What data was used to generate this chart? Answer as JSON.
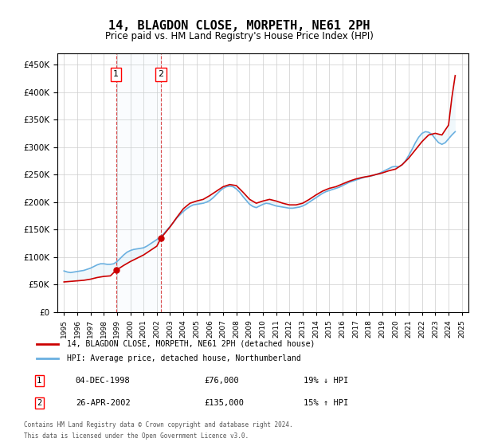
{
  "title": "14, BLAGDON CLOSE, MORPETH, NE61 2PH",
  "subtitle": "Price paid vs. HM Land Registry's House Price Index (HPI)",
  "legend_line1": "14, BLAGDON CLOSE, MORPETH, NE61 2PH (detached house)",
  "legend_line2": "HPI: Average price, detached house, Northumberland",
  "footer1": "Contains HM Land Registry data © Crown copyright and database right 2024.",
  "footer2": "This data is licensed under the Open Government Licence v3.0.",
  "sale1_date": "04-DEC-1998",
  "sale1_price": 76000,
  "sale1_label": "19% ↓ HPI",
  "sale2_date": "26-APR-2002",
  "sale2_price": 135000,
  "sale2_label": "15% ↑ HPI",
  "sale1_x": 1998.92,
  "sale2_x": 2002.32,
  "ylim": [
    0,
    470000
  ],
  "xlim": [
    1994.5,
    2025.5
  ],
  "hpi_color": "#6ab0e0",
  "price_color": "#cc0000",
  "shade_color": "#d0e8f8",
  "grid_color": "#cccccc",
  "hpi_data_x": [
    1995.0,
    1995.25,
    1995.5,
    1995.75,
    1996.0,
    1996.25,
    1996.5,
    1996.75,
    1997.0,
    1997.25,
    1997.5,
    1997.75,
    1998.0,
    1998.25,
    1998.5,
    1998.75,
    1999.0,
    1999.25,
    1999.5,
    1999.75,
    2000.0,
    2000.25,
    2000.5,
    2000.75,
    2001.0,
    2001.25,
    2001.5,
    2001.75,
    2002.0,
    2002.25,
    2002.5,
    2002.75,
    2003.0,
    2003.25,
    2003.5,
    2003.75,
    2004.0,
    2004.25,
    2004.5,
    2004.75,
    2005.0,
    2005.25,
    2005.5,
    2005.75,
    2006.0,
    2006.25,
    2006.5,
    2006.75,
    2007.0,
    2007.25,
    2007.5,
    2007.75,
    2008.0,
    2008.25,
    2008.5,
    2008.75,
    2009.0,
    2009.25,
    2009.5,
    2009.75,
    2010.0,
    2010.25,
    2010.5,
    2010.75,
    2011.0,
    2011.25,
    2011.5,
    2011.75,
    2012.0,
    2012.25,
    2012.5,
    2012.75,
    2013.0,
    2013.25,
    2013.5,
    2013.75,
    2014.0,
    2014.25,
    2014.5,
    2014.75,
    2015.0,
    2015.25,
    2015.5,
    2015.75,
    2016.0,
    2016.25,
    2016.5,
    2016.75,
    2017.0,
    2017.25,
    2017.5,
    2017.75,
    2018.0,
    2018.25,
    2018.5,
    2018.75,
    2019.0,
    2019.25,
    2019.5,
    2019.75,
    2020.0,
    2020.25,
    2020.5,
    2020.75,
    2021.0,
    2021.25,
    2021.5,
    2021.75,
    2022.0,
    2022.25,
    2022.5,
    2022.75,
    2023.0,
    2023.25,
    2023.5,
    2023.75,
    2024.0,
    2024.25,
    2024.5
  ],
  "hpi_data_y": [
    75000,
    73000,
    72000,
    73000,
    74000,
    75000,
    76000,
    78000,
    80000,
    83000,
    86000,
    88000,
    88000,
    87000,
    87000,
    88000,
    92000,
    98000,
    104000,
    109000,
    112000,
    114000,
    115000,
    116000,
    117000,
    120000,
    124000,
    128000,
    132000,
    136000,
    142000,
    149000,
    156000,
    163000,
    171000,
    177000,
    183000,
    188000,
    192000,
    195000,
    196000,
    197000,
    198000,
    200000,
    203000,
    208000,
    214000,
    220000,
    225000,
    228000,
    229000,
    228000,
    224000,
    218000,
    210000,
    203000,
    196000,
    192000,
    190000,
    193000,
    196000,
    198000,
    197000,
    195000,
    193000,
    192000,
    191000,
    190000,
    189000,
    189000,
    190000,
    191000,
    193000,
    196000,
    200000,
    204000,
    208000,
    212000,
    216000,
    219000,
    221000,
    223000,
    225000,
    227000,
    230000,
    233000,
    236000,
    238000,
    240000,
    242000,
    244000,
    246000,
    247000,
    248000,
    250000,
    252000,
    255000,
    258000,
    261000,
    264000,
    265000,
    264000,
    268000,
    275000,
    285000,
    296000,
    308000,
    318000,
    325000,
    328000,
    327000,
    323000,
    315000,
    308000,
    305000,
    308000,
    315000,
    322000,
    328000
  ],
  "price_data_x": [
    1995.0,
    1995.5,
    1996.0,
    1996.5,
    1997.0,
    1997.5,
    1998.0,
    1998.5,
    1998.92,
    1999.5,
    2000.0,
    2000.5,
    2001.0,
    2001.5,
    2002.0,
    2002.32,
    2003.0,
    2003.5,
    2004.0,
    2004.5,
    2005.0,
    2005.5,
    2006.0,
    2006.5,
    2007.0,
    2007.5,
    2008.0,
    2008.5,
    2009.0,
    2009.5,
    2010.0,
    2010.5,
    2011.0,
    2011.5,
    2012.0,
    2012.5,
    2013.0,
    2013.5,
    2014.0,
    2014.5,
    2015.0,
    2015.5,
    2016.0,
    2016.5,
    2017.0,
    2017.5,
    2018.0,
    2018.5,
    2019.0,
    2019.5,
    2020.0,
    2020.5,
    2021.0,
    2021.5,
    2022.0,
    2022.5,
    2023.0,
    2023.5,
    2024.0,
    2024.25,
    2024.5
  ],
  "price_data_y": [
    55000,
    56000,
    57000,
    58000,
    60000,
    63000,
    65000,
    66000,
    76000,
    85000,
    92000,
    98000,
    104000,
    112000,
    120000,
    135000,
    155000,
    172000,
    188000,
    198000,
    202000,
    205000,
    212000,
    220000,
    228000,
    232000,
    230000,
    218000,
    205000,
    198000,
    202000,
    205000,
    202000,
    198000,
    195000,
    195000,
    198000,
    205000,
    213000,
    220000,
    225000,
    228000,
    233000,
    238000,
    242000,
    245000,
    247000,
    250000,
    253000,
    257000,
    260000,
    268000,
    280000,
    295000,
    310000,
    322000,
    325000,
    322000,
    340000,
    390000,
    430000
  ]
}
